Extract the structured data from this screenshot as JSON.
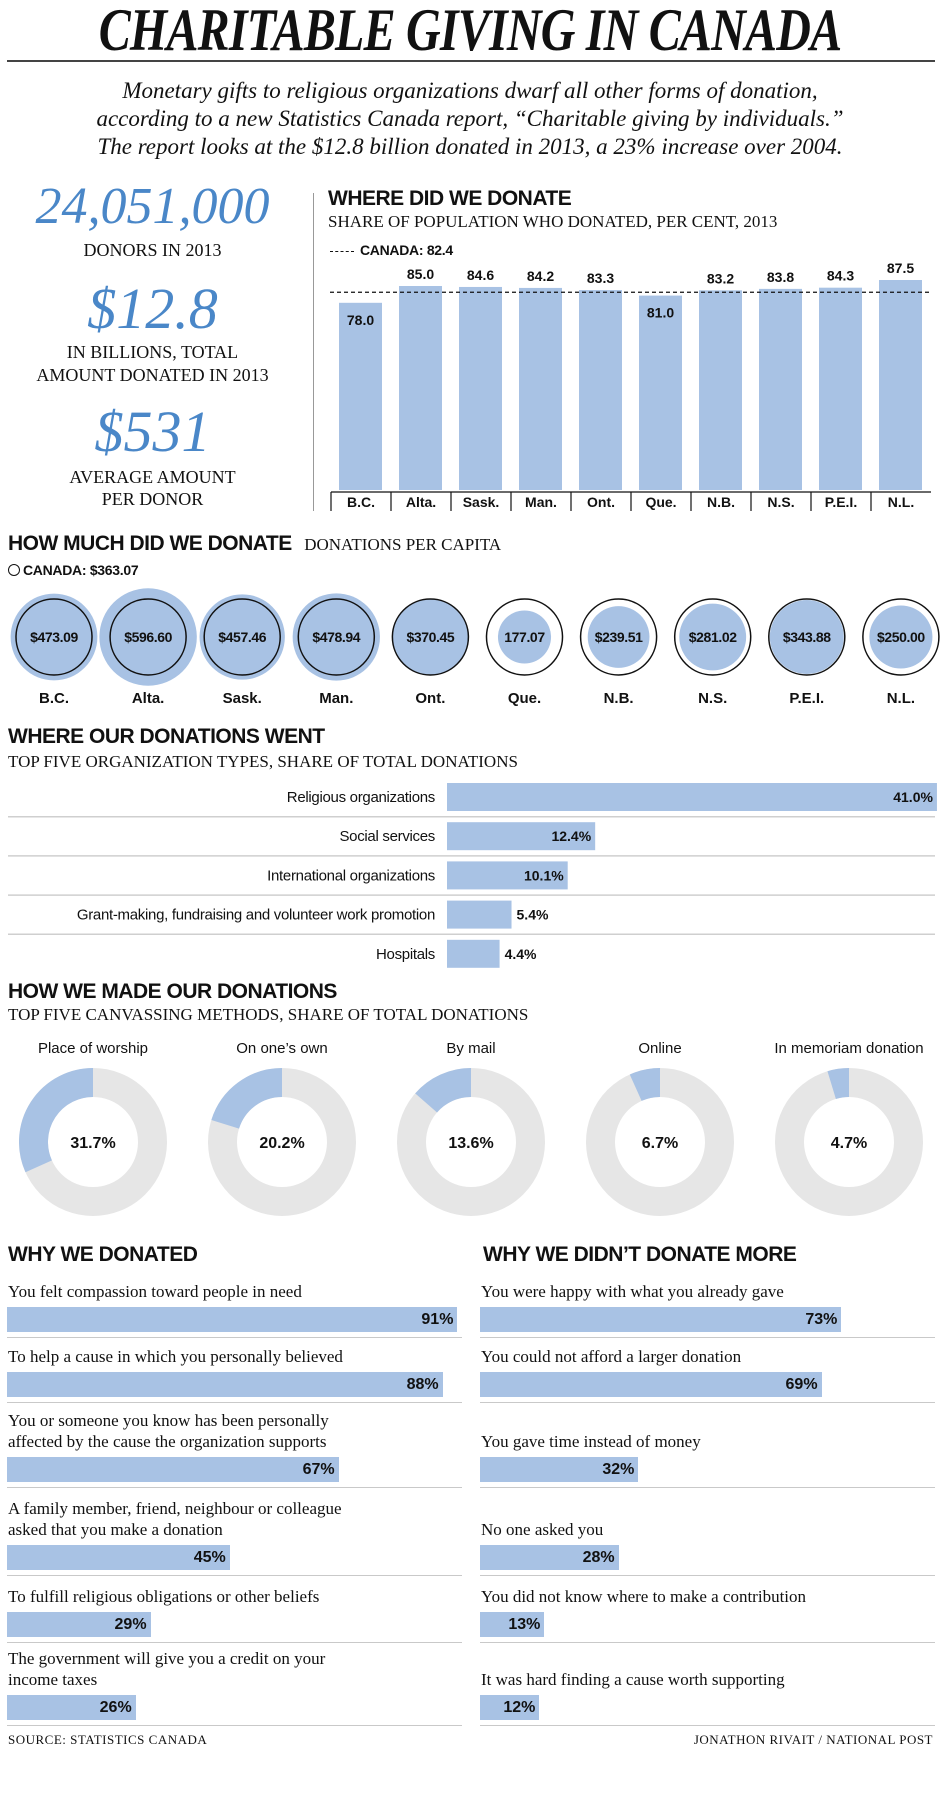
{
  "title": "CHARITABLE GIVING IN CANADA",
  "intro": [
    "Monetary gifts to religious organizations dwarf all other forms of donation,",
    "according to a new Statistics Canada report, “Charitable giving by individuals.”",
    "The report looks at the $12.8 billion donated in 2013, a 23% increase over 2004."
  ],
  "stats": [
    {
      "value": "24,051,000",
      "caption": [
        "DONORS IN 2013"
      ]
    },
    {
      "value": "$12.8",
      "caption": [
        "IN BILLIONS, TOTAL",
        "AMOUNT DONATED IN 2013"
      ]
    },
    {
      "value": "$531",
      "caption": [
        "AVERAGE AMOUNT",
        "PER DONOR"
      ]
    }
  ],
  "colors": {
    "accent_text": "#4a87c8",
    "bar": "#a8c2e4",
    "donut_rest": "#e6e6e6"
  },
  "chart_data": [
    {
      "type": "bar",
      "title": "WHERE DID WE DONATE",
      "subtitle": "SHARE OF POPULATION WHO DONATED, PER CENT, 2013",
      "reference": {
        "label": "CANADA: 82.4",
        "value": 82.4,
        "style": "dashed"
      },
      "categories": [
        "B.C.",
        "Alta.",
        "Sask.",
        "Man.",
        "Ont.",
        "Que.",
        "N.B.",
        "N.S.",
        "P.E.I.",
        "N.L."
      ],
      "values": [
        78.0,
        85.0,
        84.6,
        84.2,
        83.3,
        81.0,
        83.2,
        83.8,
        84.3,
        87.5
      ],
      "value_labels": [
        "78.0",
        "85.0",
        "84.6",
        "84.2",
        "83.3",
        "81.0",
        "83.2",
        "83.8",
        "84.3",
        "87.5"
      ],
      "ylim": [
        0,
        90
      ]
    },
    {
      "type": "bubble",
      "title": "HOW MUCH DID WE DONATE",
      "subtitle": "DONATIONS PER CAPITA",
      "reference": {
        "label": "CANADA: $363.07",
        "value": 363.07,
        "style": "outline circle"
      },
      "categories": [
        "B.C.",
        "Alta.",
        "Sask.",
        "Man.",
        "Ont.",
        "Que.",
        "N.B.",
        "N.S.",
        "P.E.I.",
        "N.L."
      ],
      "values": [
        473.09,
        596.6,
        457.46,
        478.94,
        370.45,
        177.07,
        239.51,
        281.02,
        343.88,
        250.0
      ],
      "value_labels": [
        "$473.09",
        "$596.60",
        "$457.46",
        "$478.94",
        "$370.45",
        "177.07",
        "$239.51",
        "$281.02",
        "$343.88",
        "$250.00"
      ]
    },
    {
      "type": "bar",
      "orientation": "horizontal",
      "title": "WHERE OUR DONATIONS WENT",
      "subtitle": "TOP FIVE ORGANIZATION TYPES, SHARE OF TOTAL DONATIONS",
      "categories": [
        "Religious organizations",
        "Social services",
        "International organizations",
        "Grant-making, fundraising and volunteer work promotion",
        "Hospitals"
      ],
      "values": [
        41.0,
        12.4,
        10.1,
        5.4,
        4.4
      ],
      "value_labels": [
        "41.0%",
        "12.4%",
        "10.1%",
        "5.4%",
        "4.4%"
      ]
    },
    {
      "type": "pie",
      "style": "donut",
      "title": "HOW WE MADE OUR DONATIONS",
      "subtitle": "TOP FIVE CANVASSING METHODS, SHARE OF TOTAL DONATIONS",
      "categories": [
        "Place of worship",
        "On one’s own",
        "By mail",
        "Online",
        "In memoriam donation"
      ],
      "values": [
        31.7,
        20.2,
        13.6,
        6.7,
        4.7
      ],
      "value_labels": [
        "31.7%",
        "20.2%",
        "13.6%",
        "6.7%",
        "4.7%"
      ]
    },
    {
      "type": "bar",
      "orientation": "horizontal",
      "title": "WHY WE DONATED",
      "categories": [
        "You felt compassion toward people in need",
        "To help a cause in which you personally believed",
        "You or someone you know has been personally affected by the cause the organization supports",
        "A family member, friend, neighbour or colleague asked that you make a donation",
        "To fulfill religious obligations or other beliefs",
        "The government will give you a credit on your income taxes"
      ],
      "values": [
        91,
        88,
        67,
        45,
        29,
        26
      ],
      "value_labels": [
        "91%",
        "88%",
        "67%",
        "45%",
        "29%",
        "26%"
      ],
      "xlim": [
        0,
        100
      ]
    },
    {
      "type": "bar",
      "orientation": "horizontal",
      "title": "WHY WE DIDN’T DONATE MORE",
      "categories": [
        "You were happy with what you already gave",
        "You could not afford a larger donation",
        "You gave time instead of money",
        "No one asked you",
        "You did not know where to make a contribution",
        "It was hard finding a cause worth supporting"
      ],
      "values": [
        73,
        69,
        32,
        28,
        13,
        12
      ],
      "value_labels": [
        "73%",
        "69%",
        "32%",
        "28%",
        "13%",
        "12%"
      ],
      "xlim": [
        0,
        100
      ]
    }
  ],
  "footer": {
    "source": "SOURCE: STATISTICS CANADA",
    "credit": "JONATHON RIVAIT / NATIONAL POST"
  }
}
